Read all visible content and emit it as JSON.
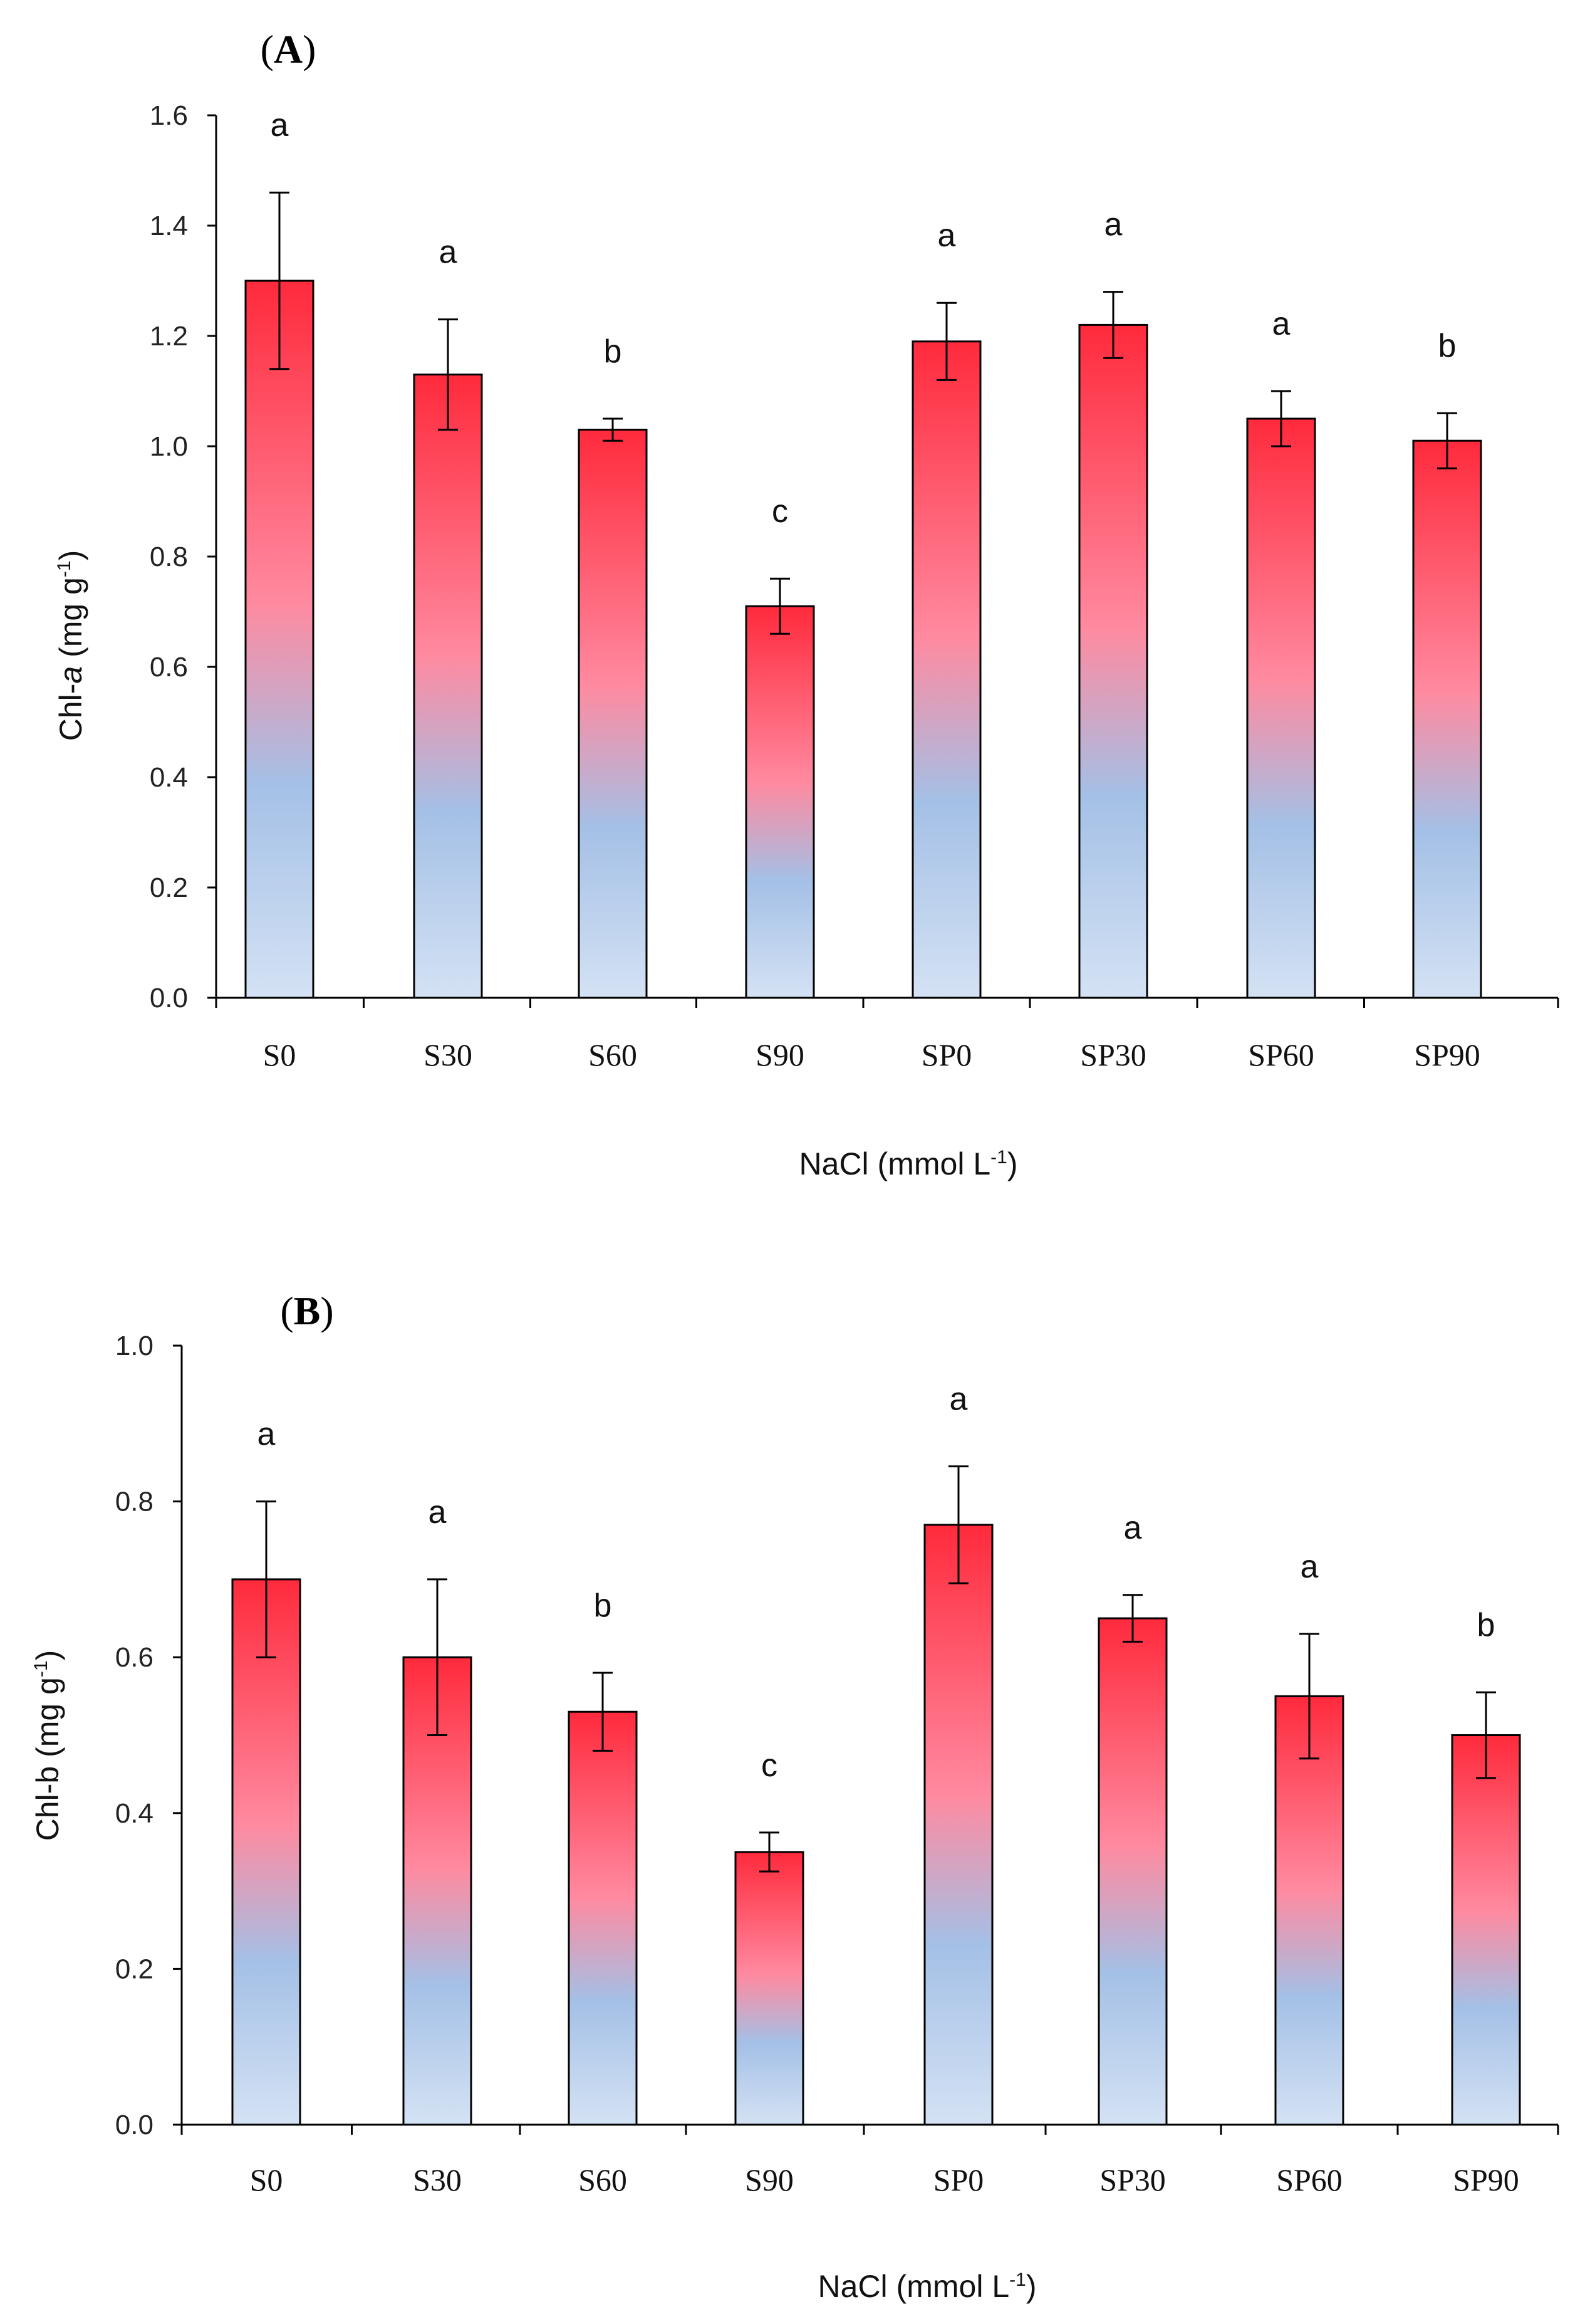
{
  "colors": {
    "bar_top": "#ff2a3c",
    "bar_mid": "#ff8aa0",
    "bar_low": "#a4c0e6",
    "bar_bottom": "#d4e2f4",
    "axis": "#000000"
  },
  "chart_data": [
    {
      "type": "bar",
      "panel_label": "A",
      "categories": [
        "S0",
        "S30",
        "S60",
        "S90",
        "SP0",
        "SP30",
        "SP60",
        "SP90"
      ],
      "values": [
        1.3,
        1.13,
        1.03,
        0.71,
        1.19,
        1.22,
        1.05,
        1.01
      ],
      "errors": [
        0.16,
        0.1,
        0.02,
        0.05,
        0.07,
        0.06,
        0.05,
        0.05
      ],
      "significance": [
        "a",
        "a",
        "b",
        "c",
        "a",
        "a",
        "a",
        "b"
      ],
      "ylim": [
        0,
        1.6
      ],
      "yticks": [
        "0.0",
        "0.2",
        "0.4",
        "0.6",
        "0.8",
        "1.0",
        "1.2",
        "1.4",
        "1.6"
      ],
      "ylabel": {
        "pre": "Chl-",
        "italic": "a",
        "mid": " (mg g",
        "sup": "-1",
        "post": ")"
      },
      "xlabel": {
        "pre": "NaCl (mmol L",
        "sup": "-1",
        "post": ")"
      }
    },
    {
      "type": "bar",
      "panel_label": "B",
      "categories": [
        "S0",
        "S30",
        "S60",
        "S90",
        "SP0",
        "SP30",
        "SP60",
        "SP90"
      ],
      "values": [
        0.7,
        0.6,
        0.53,
        0.35,
        0.77,
        0.65,
        0.55,
        0.5
      ],
      "errors": [
        0.1,
        0.1,
        0.05,
        0.025,
        0.075,
        0.03,
        0.08,
        0.055
      ],
      "significance": [
        "a",
        "a",
        "b",
        "c",
        "a",
        "a",
        "a",
        "b"
      ],
      "ylim": [
        0,
        1.0
      ],
      "yticks": [
        "0.0",
        "0.2",
        "0.4",
        "0.6",
        "0.8",
        "1.0"
      ],
      "ylabel": {
        "pre": "Chl-b",
        "italic": "",
        "mid": " (mg g",
        "sup": "-1",
        "post": ")"
      },
      "xlabel": {
        "pre": "NaCl (mmol L",
        "sup": "-1",
        "post": ")"
      }
    }
  ]
}
